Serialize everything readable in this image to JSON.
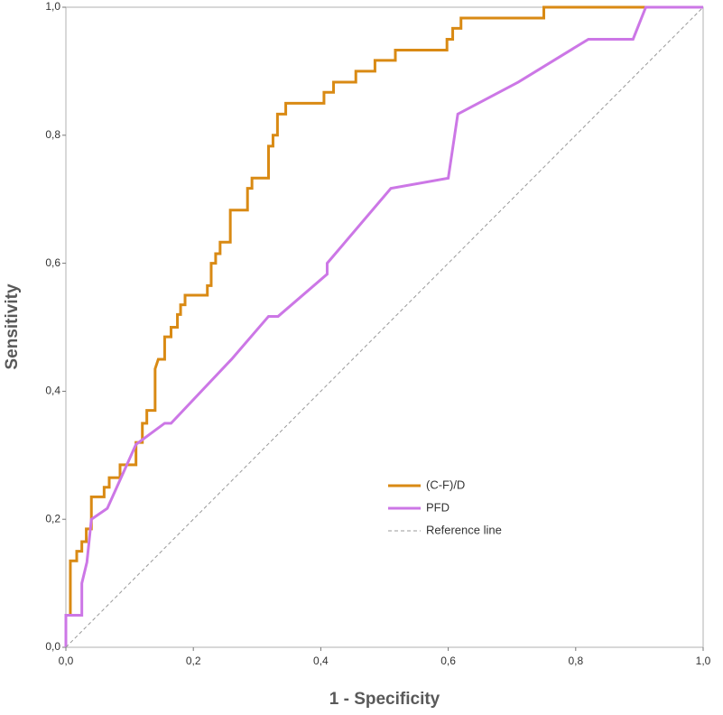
{
  "chart_data": {
    "type": "line",
    "xlabel": "1 - Specificity",
    "ylabel": "Sensitivity",
    "xlim": [
      0,
      1
    ],
    "ylim": [
      0,
      1
    ],
    "xticks": [
      {
        "value": 0,
        "label": "0,0"
      },
      {
        "value": 0.2,
        "label": "0,2"
      },
      {
        "value": 0.4,
        "label": "0,4"
      },
      {
        "value": 0.6,
        "label": "0,6"
      },
      {
        "value": 0.8,
        "label": "0,8"
      },
      {
        "value": 1,
        "label": "1,0"
      }
    ],
    "yticks": [
      {
        "value": 0,
        "label": "0,0"
      },
      {
        "value": 0.2,
        "label": "0,2"
      },
      {
        "value": 0.4,
        "label": "0,4"
      },
      {
        "value": 0.6,
        "label": "0,6"
      },
      {
        "value": 0.8,
        "label": "0,8"
      },
      {
        "value": 1,
        "label": "1,0"
      }
    ],
    "series": [
      {
        "name": "(C-F)/D",
        "color": "#d98a14",
        "x": [
          0,
          0,
          0.007,
          0.007,
          0.017,
          0.017,
          0.025,
          0.025,
          0.032,
          0.032,
          0.04,
          0.04,
          0.06,
          0.06,
          0.068,
          0.068,
          0.085,
          0.085,
          0.11,
          0.11,
          0.12,
          0.12,
          0.127,
          0.127,
          0.14,
          0.14,
          0.145,
          0.155,
          0.155,
          0.165,
          0.165,
          0.175,
          0.175,
          0.18,
          0.18,
          0.187,
          0.187,
          0.222,
          0.222,
          0.228,
          0.228,
          0.235,
          0.235,
          0.242,
          0.242,
          0.258,
          0.258,
          0.285,
          0.285,
          0.292,
          0.292,
          0.318,
          0.318,
          0.325,
          0.325,
          0.332,
          0.332,
          0.345,
          0.345,
          0.405,
          0.405,
          0.42,
          0.42,
          0.455,
          0.455,
          0.485,
          0.485,
          0.517,
          0.517,
          0.598,
          0.598,
          0.607,
          0.607,
          0.62,
          0.62,
          0.75,
          0.75,
          1
        ],
        "values": [
          0,
          0.05,
          0.05,
          0.135,
          0.135,
          0.15,
          0.15,
          0.165,
          0.165,
          0.185,
          0.185,
          0.235,
          0.235,
          0.25,
          0.25,
          0.265,
          0.265,
          0.285,
          0.285,
          0.32,
          0.32,
          0.35,
          0.35,
          0.37,
          0.37,
          0.435,
          0.45,
          0.45,
          0.485,
          0.485,
          0.5,
          0.5,
          0.52,
          0.52,
          0.535,
          0.535,
          0.55,
          0.55,
          0.565,
          0.565,
          0.6,
          0.6,
          0.615,
          0.615,
          0.633,
          0.633,
          0.683,
          0.683,
          0.717,
          0.717,
          0.733,
          0.733,
          0.783,
          0.783,
          0.8,
          0.8,
          0.833,
          0.833,
          0.85,
          0.85,
          0.867,
          0.867,
          0.883,
          0.883,
          0.9,
          0.9,
          0.917,
          0.917,
          0.933,
          0.933,
          0.95,
          0.95,
          0.967,
          0.967,
          0.983,
          0.983,
          1,
          1
        ]
      },
      {
        "name": "PFD",
        "color": "#cc77e6",
        "x": [
          0,
          0,
          0.025,
          0.025,
          0.033,
          0.04,
          0.065,
          0.11,
          0.155,
          0.165,
          0.26,
          0.318,
          0.333,
          0.41,
          0.41,
          0.51,
          0.6,
          0.615,
          0.71,
          0.82,
          0.89,
          0.91,
          1
        ],
        "values": [
          0,
          0.05,
          0.05,
          0.1,
          0.133,
          0.2,
          0.217,
          0.317,
          0.35,
          0.35,
          0.45,
          0.517,
          0.517,
          0.583,
          0.6,
          0.717,
          0.733,
          0.833,
          0.883,
          0.95,
          0.95,
          1,
          1
        ]
      },
      {
        "name": "Reference line",
        "color": "#999999",
        "dash": true,
        "x": [
          0,
          1
        ],
        "values": [
          0,
          1
        ]
      }
    ]
  }
}
